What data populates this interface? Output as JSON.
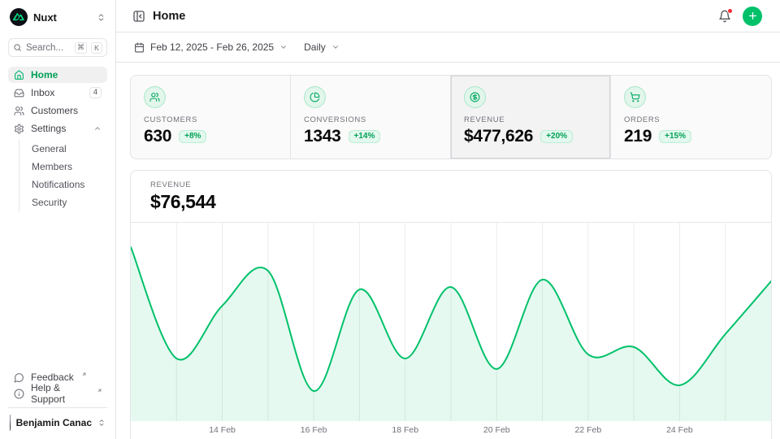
{
  "colors": {
    "primary": "#00c16a",
    "primary_dark_text": "#00a155",
    "badge_bg": "#e3f8ee",
    "chart_fill": "rgba(0,193,106,0.10)",
    "gridline": "#ececec",
    "notification_dot": "#fb2c36",
    "border": "#e4e4e7",
    "text_muted": "#71717a"
  },
  "sidebar": {
    "workspace": {
      "name": "Nuxt"
    },
    "search": {
      "placeholder": "Search...",
      "kbd_meta": "⌘",
      "kbd_key": "K"
    },
    "nav": [
      {
        "label": "Home",
        "icon": "home",
        "active": true
      },
      {
        "label": "Inbox",
        "icon": "inbox",
        "badge": "4"
      },
      {
        "label": "Customers",
        "icon": "users"
      },
      {
        "label": "Settings",
        "icon": "gear",
        "expanded": true,
        "children": [
          "General",
          "Members",
          "Notifications",
          "Security"
        ]
      }
    ],
    "footer_links": [
      {
        "label": "Feedback",
        "icon": "message-circle",
        "external": true
      },
      {
        "label": "Help & Support",
        "icon": "info",
        "external": true
      }
    ],
    "user": {
      "name": "Benjamin Canac"
    }
  },
  "header": {
    "title": "Home"
  },
  "toolbar": {
    "date_range": "Feb 12, 2025 - Feb 26, 2025",
    "period": "Daily"
  },
  "stats": [
    {
      "label": "CUSTOMERS",
      "value": "630",
      "delta": "+8%",
      "icon": "users"
    },
    {
      "label": "CONVERSIONS",
      "value": "1343",
      "delta": "+14%",
      "icon": "chart-pie"
    },
    {
      "label": "REVENUE",
      "value": "$477,626",
      "delta": "+20%",
      "icon": "circle-dollar",
      "selected": true
    },
    {
      "label": "ORDERS",
      "value": "219",
      "delta": "+15%",
      "icon": "shopping-cart"
    }
  ],
  "chart_header": {
    "label": "REVENUE",
    "value": "$76,544"
  },
  "chart_data": {
    "type": "area",
    "title": "Revenue (daily)",
    "xlabel": "",
    "ylabel": "",
    "x": [
      "Feb 12",
      "Feb 13",
      "Feb 14",
      "Feb 15",
      "Feb 16",
      "Feb 17",
      "Feb 18",
      "Feb 19",
      "Feb 20",
      "Feb 21",
      "Feb 22",
      "Feb 23",
      "Feb 24",
      "Feb 25",
      "Feb 26"
    ],
    "values": [
      72800,
      26200,
      48300,
      62900,
      12600,
      55100,
      26200,
      56100,
      21800,
      59200,
      27900,
      31000,
      15000,
      36400,
      58500
    ],
    "ylim": [
      0,
      83000
    ],
    "x_tick_labels": [
      "14 Feb",
      "16 Feb",
      "18 Feb",
      "20 Feb",
      "22 Feb",
      "24 Feb"
    ],
    "x_tick_indices": [
      2,
      4,
      6,
      8,
      10,
      12
    ],
    "grid": "vertical",
    "legend": "none",
    "line_color": "#00c16a",
    "fill_color": "rgba(0,193,106,0.10)"
  }
}
